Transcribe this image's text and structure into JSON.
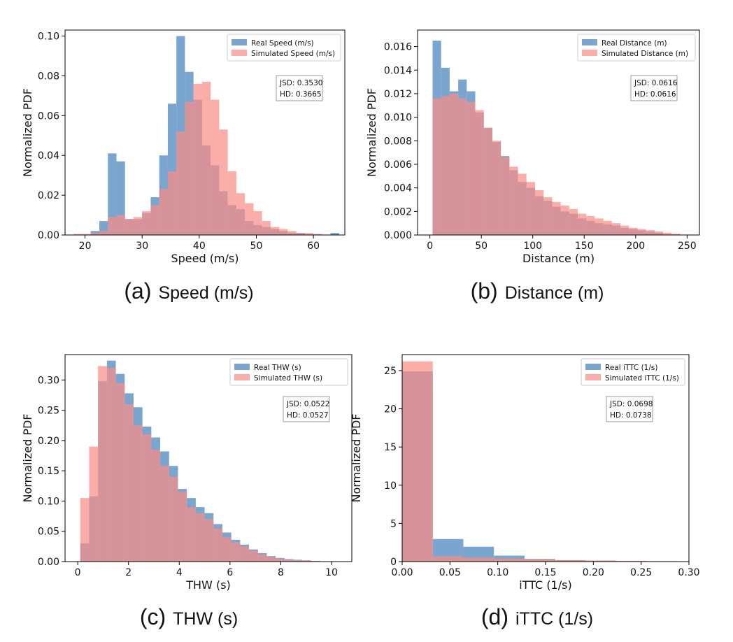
{
  "chart_data": [
    {
      "type": "bar",
      "caption": {
        "letter": "(a)",
        "text": "Speed (m/s)"
      },
      "xlabel": "Speed (m/s)",
      "ylabel": "Normalized PDF",
      "xlim": [
        16.5,
        65.5
      ],
      "ylim": [
        0,
        0.103
      ],
      "xticks": [
        20,
        30,
        40,
        50,
        60
      ],
      "yticks": [
        0.0,
        0.02,
        0.04,
        0.06,
        0.08,
        0.1
      ],
      "ytick_decimals": 2,
      "bin_width": 1.5,
      "legend_position": "top-right",
      "stats": [
        "JSD: 0.3530",
        "HD: 0.3665"
      ],
      "series": [
        {
          "name": "Real Speed (m/s)",
          "color": "#6b9bc9",
          "bins": [
            [
              21,
              0.002
            ],
            [
              22.5,
              0.007
            ],
            [
              24,
              0.041
            ],
            [
              25.5,
              0.037
            ],
            [
              27,
              0.008
            ],
            [
              28.5,
              0.008
            ],
            [
              30,
              0.011
            ],
            [
              31.5,
              0.019
            ],
            [
              33,
              0.04
            ],
            [
              34.5,
              0.066
            ],
            [
              36,
              0.1
            ],
            [
              37.5,
              0.082
            ],
            [
              39,
              0.068
            ],
            [
              40.5,
              0.045
            ],
            [
              42,
              0.035
            ],
            [
              43.5,
              0.022
            ],
            [
              45,
              0.015
            ],
            [
              46.5,
              0.013
            ],
            [
              48,
              0.007
            ],
            [
              49.5,
              0.005
            ],
            [
              51,
              0.004
            ],
            [
              52.5,
              0.003
            ],
            [
              54,
              0.002
            ],
            [
              55.5,
              0.001
            ],
            [
              57,
              0.001
            ],
            [
              63,
              0.001
            ]
          ]
        },
        {
          "name": "Simulated Speed (m/s)",
          "color": "#fa8e87",
          "bins": [
            [
              18,
              0.0005
            ],
            [
              19.5,
              0.0005
            ],
            [
              21,
              0.001
            ],
            [
              22.5,
              0.002
            ],
            [
              24,
              0.009
            ],
            [
              25.5,
              0.01
            ],
            [
              27,
              0.008
            ],
            [
              28.5,
              0.009
            ],
            [
              30,
              0.012
            ],
            [
              31.5,
              0.015
            ],
            [
              33,
              0.023
            ],
            [
              34.5,
              0.032
            ],
            [
              36,
              0.052
            ],
            [
              37.5,
              0.067
            ],
            [
              39,
              0.076
            ],
            [
              40.5,
              0.077
            ],
            [
              42,
              0.068
            ],
            [
              43.5,
              0.053
            ],
            [
              45,
              0.032
            ],
            [
              46.5,
              0.021
            ],
            [
              48,
              0.016
            ],
            [
              49.5,
              0.012
            ],
            [
              51,
              0.007
            ],
            [
              52.5,
              0.004
            ],
            [
              54,
              0.003
            ],
            [
              55.5,
              0.002
            ],
            [
              57,
              0.001
            ],
            [
              58.5,
              0.001
            ],
            [
              60,
              0.0005
            ]
          ]
        }
      ]
    },
    {
      "type": "bar",
      "caption": {
        "letter": "(b)",
        "text": "Distance (m)"
      },
      "xlabel": "Distance (m)",
      "ylabel": "Normalized PDF",
      "xlim": [
        -12,
        262
      ],
      "ylim": [
        0,
        0.0174
      ],
      "xticks": [
        0,
        50,
        100,
        150,
        200,
        250
      ],
      "yticks": [
        0.0,
        0.002,
        0.004,
        0.006,
        0.008,
        0.01,
        0.012,
        0.014,
        0.016
      ],
      "ytick_decimals": 3,
      "bin_width": 8.3,
      "legend_position": "top-right",
      "stats": [
        "JSD: 0.0616",
        "HD: 0.0616"
      ],
      "series": [
        {
          "name": "Real Distance (m)",
          "color": "#6b9bc9",
          "bins": [
            [
              2.6,
              0.0165
            ],
            [
              10.9,
              0.0142
            ],
            [
              19.2,
              0.0122
            ],
            [
              27.5,
              0.0132
            ],
            [
              35.8,
              0.0122
            ],
            [
              44.1,
              0.0104
            ],
            [
              52.4,
              0.0091
            ],
            [
              60.7,
              0.0079
            ],
            [
              69,
              0.0067
            ],
            [
              77.3,
              0.0055
            ],
            [
              85.6,
              0.0045
            ],
            [
              93.9,
              0.004
            ],
            [
              102.2,
              0.0033
            ],
            [
              110.5,
              0.0029
            ],
            [
              118.8,
              0.0024
            ],
            [
              127.1,
              0.002
            ],
            [
              135.4,
              0.0018
            ],
            [
              143.7,
              0.0014
            ],
            [
              152,
              0.0012
            ],
            [
              160.3,
              0.001
            ],
            [
              168.6,
              0.0009
            ],
            [
              176.9,
              0.0008
            ],
            [
              185.2,
              0.0006
            ],
            [
              193.5,
              0.0005
            ],
            [
              201.8,
              0.0004
            ],
            [
              210.1,
              0.0003
            ],
            [
              218.4,
              0.0002
            ]
          ]
        },
        {
          "name": "Simulated Distance (m)",
          "color": "#fa8e87",
          "bins": [
            [
              2.6,
              0.0116
            ],
            [
              10.9,
              0.0118
            ],
            [
              19.2,
              0.012
            ],
            [
              27.5,
              0.0116
            ],
            [
              35.8,
              0.0113
            ],
            [
              44.1,
              0.0106
            ],
            [
              52.4,
              0.0091
            ],
            [
              60.7,
              0.008
            ],
            [
              69,
              0.0066
            ],
            [
              77.3,
              0.0058
            ],
            [
              85.6,
              0.0052
            ],
            [
              93.9,
              0.0045
            ],
            [
              102.2,
              0.0038
            ],
            [
              110.5,
              0.0032
            ],
            [
              118.8,
              0.0028
            ],
            [
              127.1,
              0.0025
            ],
            [
              135.4,
              0.0022
            ],
            [
              143.7,
              0.0018
            ],
            [
              152,
              0.0016
            ],
            [
              160.3,
              0.0014
            ],
            [
              168.6,
              0.0012
            ],
            [
              176.9,
              0.001
            ],
            [
              185.2,
              0.0008
            ],
            [
              193.5,
              0.0006
            ],
            [
              201.8,
              0.0005
            ],
            [
              210.1,
              0.0004
            ],
            [
              218.4,
              0.0003
            ],
            [
              226.7,
              0.0002
            ],
            [
              235,
              0.0001
            ]
          ]
        }
      ]
    },
    {
      "type": "bar",
      "caption": {
        "letter": "(c)",
        "text": "THW (s)"
      },
      "xlabel": "THW (s)",
      "ylabel": "Normalized PDF",
      "xlim": [
        -0.5,
        10.8
      ],
      "ylim": [
        0,
        0.342
      ],
      "xticks": [
        0,
        2,
        4,
        6,
        8,
        10
      ],
      "yticks": [
        0.0,
        0.05,
        0.1,
        0.15,
        0.2,
        0.25,
        0.3
      ],
      "ytick_decimals": 2,
      "bin_width": 0.35,
      "legend_position": "top-right",
      "stats": [
        "JSD: 0.0522",
        "HD: 0.0527"
      ],
      "series": [
        {
          "name": "Real THW (s)",
          "color": "#6b9bc9",
          "bins": [
            [
              0.1,
              0.03
            ],
            [
              0.45,
              0.108
            ],
            [
              0.8,
              0.298
            ],
            [
              1.15,
              0.332
            ],
            [
              1.5,
              0.31
            ],
            [
              1.85,
              0.278
            ],
            [
              2.2,
              0.255
            ],
            [
              2.55,
              0.223
            ],
            [
              2.9,
              0.205
            ],
            [
              3.25,
              0.182
            ],
            [
              3.6,
              0.158
            ],
            [
              3.95,
              0.12
            ],
            [
              4.3,
              0.105
            ],
            [
              4.65,
              0.09
            ],
            [
              5.0,
              0.08
            ],
            [
              5.35,
              0.062
            ],
            [
              5.7,
              0.048
            ],
            [
              6.05,
              0.036
            ],
            [
              6.4,
              0.028
            ],
            [
              6.75,
              0.02
            ],
            [
              7.1,
              0.014
            ],
            [
              7.45,
              0.009
            ],
            [
              7.8,
              0.006
            ],
            [
              8.15,
              0.004
            ],
            [
              8.5,
              0.003
            ],
            [
              8.85,
              0.002
            ],
            [
              9.2,
              0.001
            ]
          ]
        },
        {
          "name": "Simulated THW (s)",
          "color": "#fa8e87",
          "bins": [
            [
              0.1,
              0.105
            ],
            [
              0.45,
              0.19
            ],
            [
              0.8,
              0.323
            ],
            [
              1.15,
              0.32
            ],
            [
              1.5,
              0.295
            ],
            [
              1.85,
              0.26
            ],
            [
              2.2,
              0.225
            ],
            [
              2.55,
              0.21
            ],
            [
              2.9,
              0.185
            ],
            [
              3.25,
              0.158
            ],
            [
              3.6,
              0.14
            ],
            [
              3.95,
              0.115
            ],
            [
              4.3,
              0.09
            ],
            [
              4.65,
              0.08
            ],
            [
              5.0,
              0.07
            ],
            [
              5.35,
              0.055
            ],
            [
              5.7,
              0.04
            ],
            [
              6.05,
              0.032
            ],
            [
              6.4,
              0.025
            ],
            [
              6.75,
              0.018
            ],
            [
              7.1,
              0.012
            ],
            [
              7.45,
              0.008
            ],
            [
              7.8,
              0.005
            ],
            [
              8.15,
              0.003
            ],
            [
              8.5,
              0.002
            ],
            [
              8.85,
              0.002
            ],
            [
              9.2,
              0.001
            ]
          ]
        }
      ]
    },
    {
      "type": "bar",
      "caption": {
        "letter": "(d)",
        "text": "iTTC (1/s)"
      },
      "xlabel": "iTTC (1/s)",
      "ylabel": "Normalized PDF",
      "xlim": [
        0.0,
        0.3
      ],
      "ylim": [
        0,
        27.1
      ],
      "xticks": [
        0.0,
        0.05,
        0.1,
        0.15,
        0.2,
        0.25,
        0.3
      ],
      "yticks": [
        0,
        5,
        10,
        15,
        20,
        25
      ],
      "ytick_decimals": 0,
      "xtick_decimals": 2,
      "bin_width": 0.032,
      "legend_position": "top-right",
      "stats": [
        "JSD: 0.0698",
        "HD: 0.0738"
      ],
      "series": [
        {
          "name": "Real iTTC (1/s)",
          "color": "#6b9bc9",
          "bins": [
            [
              0.0,
              24.9
            ],
            [
              0.032,
              2.95
            ],
            [
              0.064,
              1.95
            ],
            [
              0.096,
              0.78
            ],
            [
              0.128,
              0.35
            ],
            [
              0.16,
              0.18
            ],
            [
              0.192,
              0.1
            ],
            [
              0.224,
              0.05
            ],
            [
              0.256,
              0.03
            ],
            [
              0.288,
              0.02
            ]
          ]
        },
        {
          "name": "Simulated iTTC (1/s)",
          "color": "#fa8e87",
          "bins": [
            [
              0.0,
              26.2
            ],
            [
              0.032,
              0.7
            ],
            [
              0.064,
              0.5
            ],
            [
              0.096,
              0.4
            ],
            [
              0.128,
              0.3
            ],
            [
              0.16,
              0.2
            ],
            [
              0.192,
              0.15
            ],
            [
              0.224,
              0.1
            ],
            [
              0.256,
              0.06
            ],
            [
              0.288,
              0.04
            ]
          ]
        }
      ]
    }
  ]
}
